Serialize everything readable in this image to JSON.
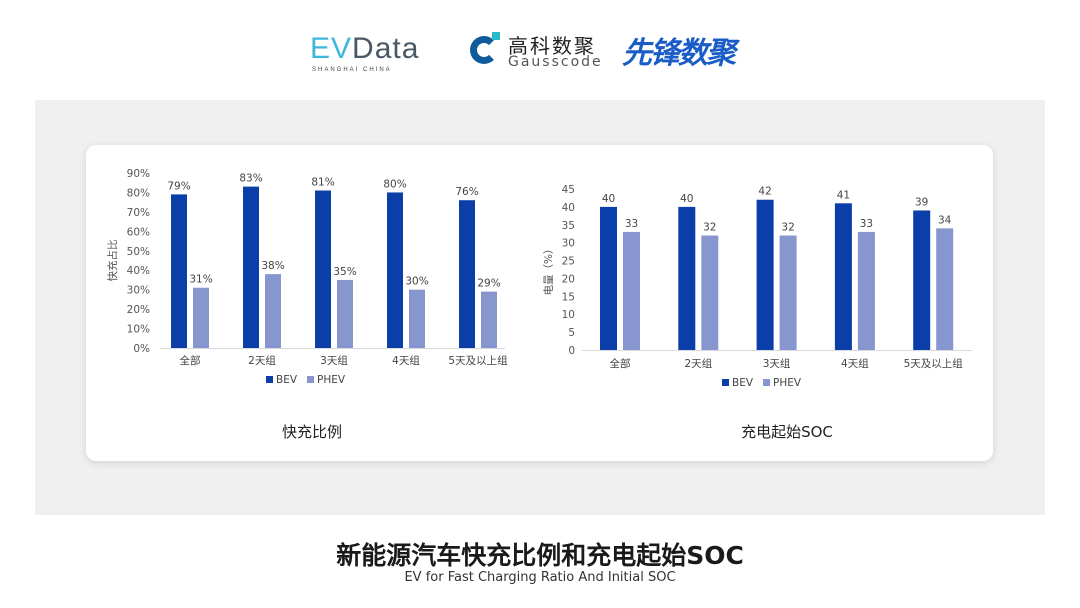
{
  "logos": {
    "evdata": {
      "text_a": "EV",
      "text_b": "Data",
      "sub": "SHANGHAI CHINA"
    },
    "gausscode": {
      "cn": "高科数聚",
      "en": "Gausscode"
    },
    "xianfeng": {
      "text": "先锋数聚"
    }
  },
  "colors": {
    "bev": "#0a3ea8",
    "phev": "#8896d0",
    "panel": "#f0f0f0"
  },
  "chart_data": [
    {
      "type": "bar",
      "title": "快充比例",
      "ylabel": "快充占比",
      "categories": [
        "全部",
        "2天组",
        "3天组",
        "4天组",
        "5天及以上组"
      ],
      "series": [
        {
          "name": "BEV",
          "values": [
            79,
            83,
            81,
            80,
            76
          ],
          "labels": [
            "79%",
            "83%",
            "81%",
            "80%",
            "76%"
          ]
        },
        {
          "name": "PHEV",
          "values": [
            31,
            38,
            35,
            30,
            29
          ],
          "labels": [
            "31%",
            "38%",
            "35%",
            "30%",
            "29%"
          ]
        }
      ],
      "ylim": [
        0,
        90
      ],
      "yticks": [
        "0%",
        "10%",
        "20%",
        "30%",
        "40%",
        "50%",
        "60%",
        "70%",
        "80%",
        "90%"
      ],
      "legend": "bottom",
      "grid": false
    },
    {
      "type": "bar",
      "title": "充电起始SOC",
      "ylabel": "电量（%）",
      "categories": [
        "全部",
        "2天组",
        "3天组",
        "4天组",
        "5天及以上组"
      ],
      "series": [
        {
          "name": "BEV",
          "values": [
            40,
            40,
            42,
            41,
            39
          ],
          "labels": [
            "40",
            "40",
            "42",
            "41",
            "39"
          ]
        },
        {
          "name": "PHEV",
          "values": [
            33,
            32,
            32,
            33,
            34
          ],
          "labels": [
            "33",
            "32",
            "32",
            "33",
            "34"
          ]
        }
      ],
      "ylim": [
        0,
        45
      ],
      "yticks": [
        "0",
        "5",
        "10",
        "15",
        "20",
        "25",
        "30",
        "35",
        "40",
        "45"
      ],
      "legend": "bottom",
      "grid": false
    }
  ],
  "footer": {
    "title": "新能源汽车快充比例和充电起始SOC",
    "subtitle": "EV for Fast Charging Ratio And Initial SOC"
  }
}
